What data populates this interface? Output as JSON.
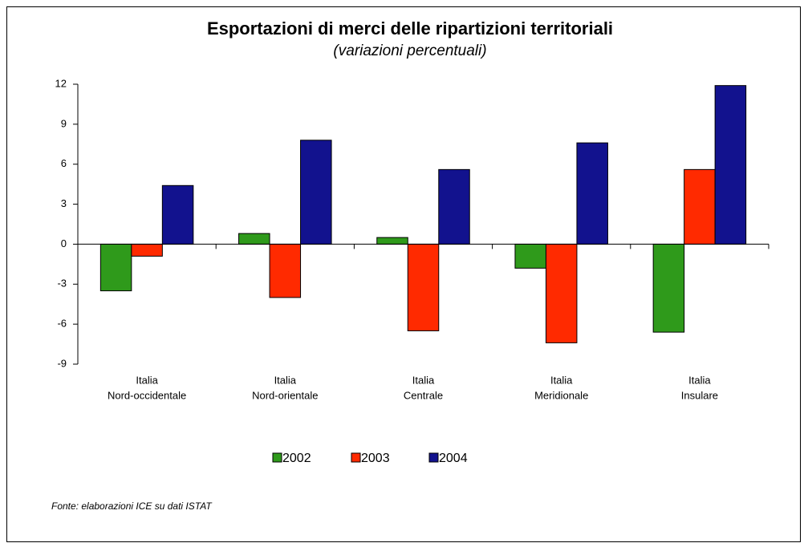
{
  "chart_data": {
    "type": "bar",
    "title": "Esportazioni di merci delle ripartizioni territoriali",
    "subtitle": "(variazioni percentuali)",
    "categories": [
      [
        "Italia",
        "Nord-occidentale"
      ],
      [
        "Italia",
        "Nord-orientale"
      ],
      [
        "Italia",
        "Centrale"
      ],
      [
        "Italia",
        "Meridionale"
      ],
      [
        "Italia",
        "Insulare"
      ]
    ],
    "series": [
      {
        "name": "2002",
        "color": "#2f9a1b",
        "values": [
          -3.5,
          0.8,
          0.5,
          -1.8,
          -6.6
        ]
      },
      {
        "name": "2003",
        "color": "#ff2a00",
        "values": [
          -0.9,
          -4.0,
          -6.5,
          -7.4,
          5.6
        ]
      },
      {
        "name": "2004",
        "color": "#12128e",
        "values": [
          4.4,
          7.8,
          5.6,
          7.6,
          11.9
        ]
      }
    ],
    "ylim": [
      -9,
      12
    ],
    "yticks": [
      -9,
      -6,
      -3,
      0,
      3,
      6,
      9,
      12
    ],
    "grid": false,
    "note": "Fonte: elaborazioni ICE su dati ISTAT"
  }
}
